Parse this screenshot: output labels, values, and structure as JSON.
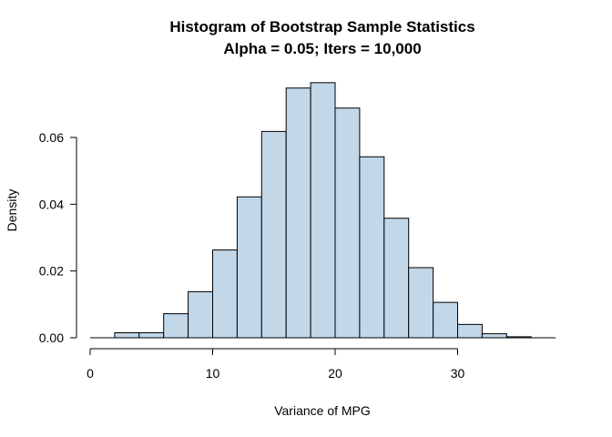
{
  "chart_data": {
    "type": "bar",
    "title": "Histogram of Bootstrap Sample Statistics",
    "subtitle": "Alpha = 0.05; Iters = 10,000",
    "xlabel": "Variance of MPG",
    "ylabel": "Density",
    "bin_width": 2,
    "bins": [
      {
        "x0": 0,
        "x1": 2,
        "density": 0.0
      },
      {
        "x0": 2,
        "x1": 4,
        "density": 0.0015
      },
      {
        "x0": 4,
        "x1": 6,
        "density": 0.0015
      },
      {
        "x0": 6,
        "x1": 8,
        "density": 0.0072
      },
      {
        "x0": 8,
        "x1": 10,
        "density": 0.0138
      },
      {
        "x0": 10,
        "x1": 12,
        "density": 0.0263
      },
      {
        "x0": 12,
        "x1": 14,
        "density": 0.0422
      },
      {
        "x0": 14,
        "x1": 16,
        "density": 0.0618
      },
      {
        "x0": 16,
        "x1": 18,
        "density": 0.0748
      },
      {
        "x0": 18,
        "x1": 20,
        "density": 0.0764
      },
      {
        "x0": 20,
        "x1": 22,
        "density": 0.0688
      },
      {
        "x0": 22,
        "x1": 24,
        "density": 0.0542
      },
      {
        "x0": 24,
        "x1": 26,
        "density": 0.0358
      },
      {
        "x0": 26,
        "x1": 28,
        "density": 0.021
      },
      {
        "x0": 28,
        "x1": 30,
        "density": 0.0106
      },
      {
        "x0": 30,
        "x1": 32,
        "density": 0.004
      },
      {
        "x0": 32,
        "x1": 34,
        "density": 0.0012
      },
      {
        "x0": 34,
        "x1": 36,
        "density": 0.0003
      },
      {
        "x0": 36,
        "x1": 38,
        "density": 0.0
      }
    ],
    "xlim": [
      0,
      38
    ],
    "ylim": [
      0,
      0.08
    ],
    "x_ticks": [
      0,
      10,
      20,
      30
    ],
    "x_tick_labels": [
      "0",
      "10",
      "20",
      "30"
    ],
    "y_ticks": [
      0,
      0.02,
      0.04,
      0.06
    ],
    "y_tick_labels": [
      "0.00",
      "0.02",
      "0.04",
      "0.06"
    ],
    "grid": false,
    "bar_color": "#c2d7e8",
    "bar_edge_color": "#000000"
  }
}
